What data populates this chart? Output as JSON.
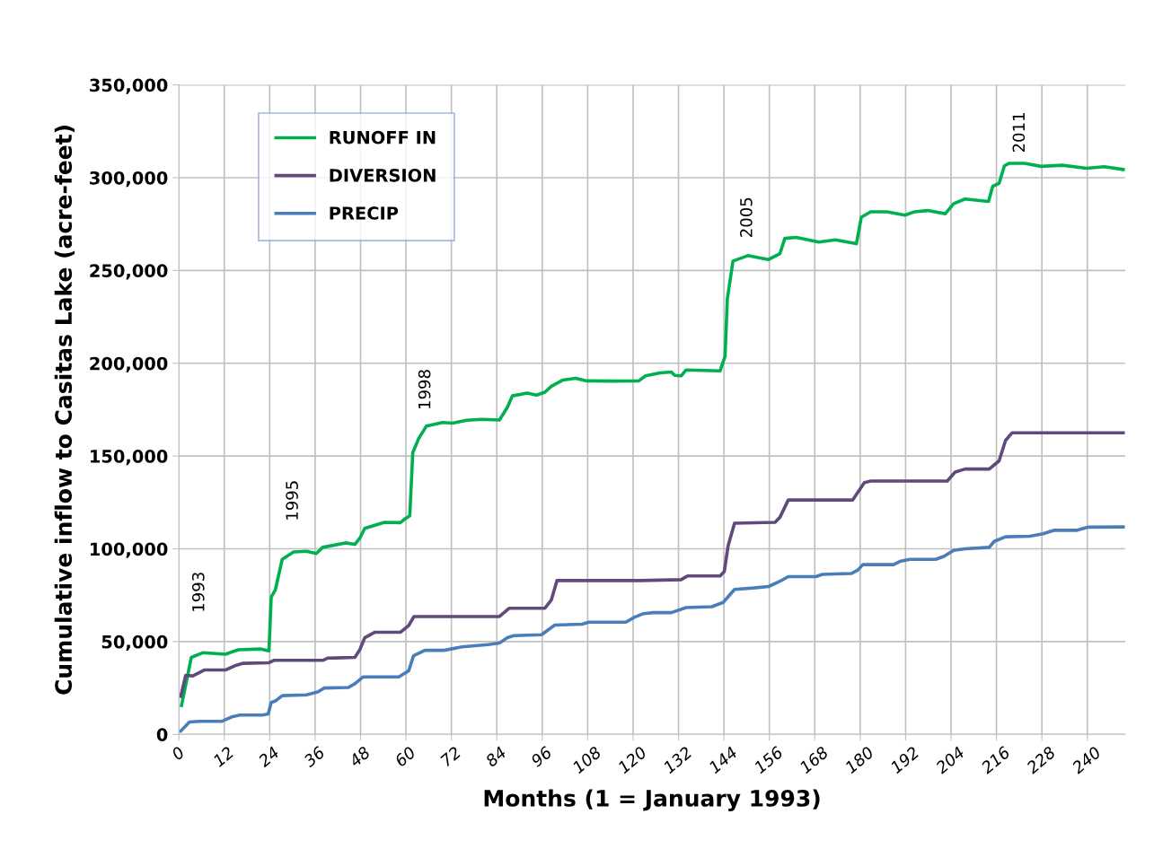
{
  "chart_data": {
    "type": "line",
    "xlabel": "Months (1 = January 1993)",
    "ylabel": "Cumulative inflow to Casitas Lake (acre-feet)",
    "xlim": [
      0,
      250
    ],
    "xticks": [
      0,
      12,
      24,
      36,
      48,
      60,
      72,
      84,
      96,
      108,
      120,
      132,
      144,
      156,
      168,
      180,
      192,
      204,
      216,
      228,
      240
    ],
    "ylim": [
      0,
      350000
    ],
    "yticks": [
      {
        "value": 0,
        "label": "0"
      },
      {
        "value": 50000,
        "label": "50,000"
      },
      {
        "value": 100000,
        "label": "100,000"
      },
      {
        "value": 150000,
        "label": "150,000"
      },
      {
        "value": 200000,
        "label": "200,000"
      },
      {
        "value": 250000,
        "label": "250,000"
      },
      {
        "value": 300000,
        "label": "300,000"
      },
      {
        "value": 350000,
        "label": "350,000"
      }
    ],
    "grid": true,
    "legend": "top left",
    "marker": "none",
    "line_style": "solid",
    "series": [
      {
        "name": "RUNOFF IN",
        "color": "#00b050",
        "x": [
          0.7,
          3.3,
          6.3,
          12.3,
          15.7,
          21.7,
          23.8,
          24.4,
          25.5,
          27.3,
          30.3,
          33.7,
          36.3,
          38,
          44,
          46.5,
          47.8,
          49.1,
          54.3,
          58.5,
          59.8,
          61,
          61.8,
          63.3,
          65.4,
          69.7,
          72.3,
          76.1,
          80,
          84.7,
          86.8,
          88.1,
          92,
          94.5,
          96.7,
          98.4,
          101.4,
          104.8,
          107.8,
          114.3,
          121.5,
          123.3,
          127.1,
          130.1,
          131,
          132.7,
          134,
          143,
          144.3,
          144.9,
          146.4,
          150.3,
          155.8,
          158.8,
          160.1,
          163.1,
          169.1,
          173.4,
          179,
          180.3,
          182.8,
          187.1,
          191.8,
          194.4,
          197.8,
          202.5,
          204.7,
          207.7,
          213.9,
          215,
          216.7,
          218.1,
          219.3,
          223.5,
          227.8,
          233.4,
          239.8,
          244.5,
          249.5
        ],
        "values": [
          15600,
          41500,
          44000,
          43200,
          45600,
          46000,
          45000,
          74000,
          78000,
          94300,
          98300,
          98700,
          97500,
          100800,
          103200,
          102400,
          105700,
          111000,
          114300,
          114100,
          116200,
          117800,
          151900,
          159200,
          166200,
          168100,
          167700,
          169300,
          169800,
          169400,
          176300,
          182400,
          183900,
          182800,
          184400,
          187600,
          190900,
          191900,
          190500,
          190400,
          190500,
          193200,
          194800,
          195300,
          193500,
          193200,
          196400,
          195900,
          203800,
          234700,
          255100,
          258000,
          255900,
          259100,
          267300,
          267800,
          265300,
          266500,
          264400,
          278700,
          281600,
          281600,
          279800,
          281600,
          282300,
          280600,
          286000,
          288500,
          287200,
          295300,
          297000,
          306400,
          307700,
          307700,
          306100,
          306700,
          305100,
          305900,
          304400
        ]
      },
      {
        "name": "DIVERSION",
        "color": "#604a7b",
        "x": [
          0.5,
          1.8,
          3.7,
          6.7,
          12.3,
          14.8,
          17,
          23.8,
          25.1,
          38,
          39.3,
          41.4,
          46.5,
          47.8,
          49.1,
          51.7,
          58.5,
          60.7,
          62.1,
          84.7,
          87.3,
          96.7,
          98.4,
          99.9,
          122,
          132.7,
          134.4,
          143,
          144.1,
          145.1,
          146.8,
          157.5,
          158.8,
          161,
          178,
          181.1,
          182.8,
          203,
          205.1,
          207.7,
          214.1,
          216.7,
          218.4,
          220.1,
          249.5
        ],
        "values": [
          20500,
          31800,
          31500,
          34700,
          34700,
          37000,
          38300,
          38600,
          39900,
          39900,
          41100,
          41200,
          41500,
          45600,
          52100,
          55000,
          55000,
          58600,
          63500,
          63500,
          68000,
          68000,
          72400,
          82900,
          82900,
          83400,
          85400,
          85400,
          87800,
          101600,
          113800,
          114300,
          117000,
          126300,
          126300,
          135700,
          136500,
          136500,
          141400,
          143000,
          143000,
          147400,
          158400,
          162500,
          162500
        ]
      },
      {
        "name": "PRECIP",
        "color": "#4a7ebb",
        "x": [
          0.5,
          2.8,
          5.4,
          11.4,
          14,
          16.1,
          22.1,
          23.6,
          24.4,
          25.5,
          27.3,
          33.7,
          36.7,
          38.4,
          44.8,
          46.5,
          48.7,
          58.1,
          60.7,
          62,
          65,
          70.1,
          74.8,
          81.7,
          84.7,
          86.8,
          88.5,
          95.8,
          99.3,
          106.5,
          108.3,
          118.1,
          120.3,
          122.8,
          125.4,
          130.1,
          134,
          140.8,
          143.8,
          146.8,
          151.9,
          155.8,
          158.8,
          161,
          168.3,
          170,
          177.7,
          179.4,
          180.7,
          188.8,
          190.5,
          193.1,
          199.9,
          202.1,
          204.7,
          207.7,
          214.1,
          215.4,
          218.4,
          224.8,
          228.3,
          231.3,
          237.3,
          240.3,
          249.5
        ],
        "values": [
          1800,
          6700,
          7000,
          7100,
          9400,
          10400,
          10400,
          11000,
          17200,
          18000,
          20900,
          21300,
          22900,
          25000,
          25300,
          27300,
          31000,
          31000,
          34200,
          42400,
          45300,
          45300,
          47200,
          48400,
          49200,
          52100,
          53200,
          53700,
          58900,
          59400,
          60500,
          60500,
          63100,
          65100,
          65600,
          65600,
          68300,
          68800,
          71100,
          78100,
          78900,
          79700,
          82500,
          85000,
          85000,
          86200,
          86700,
          88600,
          91500,
          91500,
          93200,
          94300,
          94300,
          95900,
          99200,
          100000,
          100800,
          104000,
          106500,
          106800,
          108100,
          110000,
          110000,
          111700,
          111800
        ]
      }
    ],
    "annotations": [
      "1993",
      "1995",
      "1998",
      "2005",
      "2011"
    ]
  }
}
